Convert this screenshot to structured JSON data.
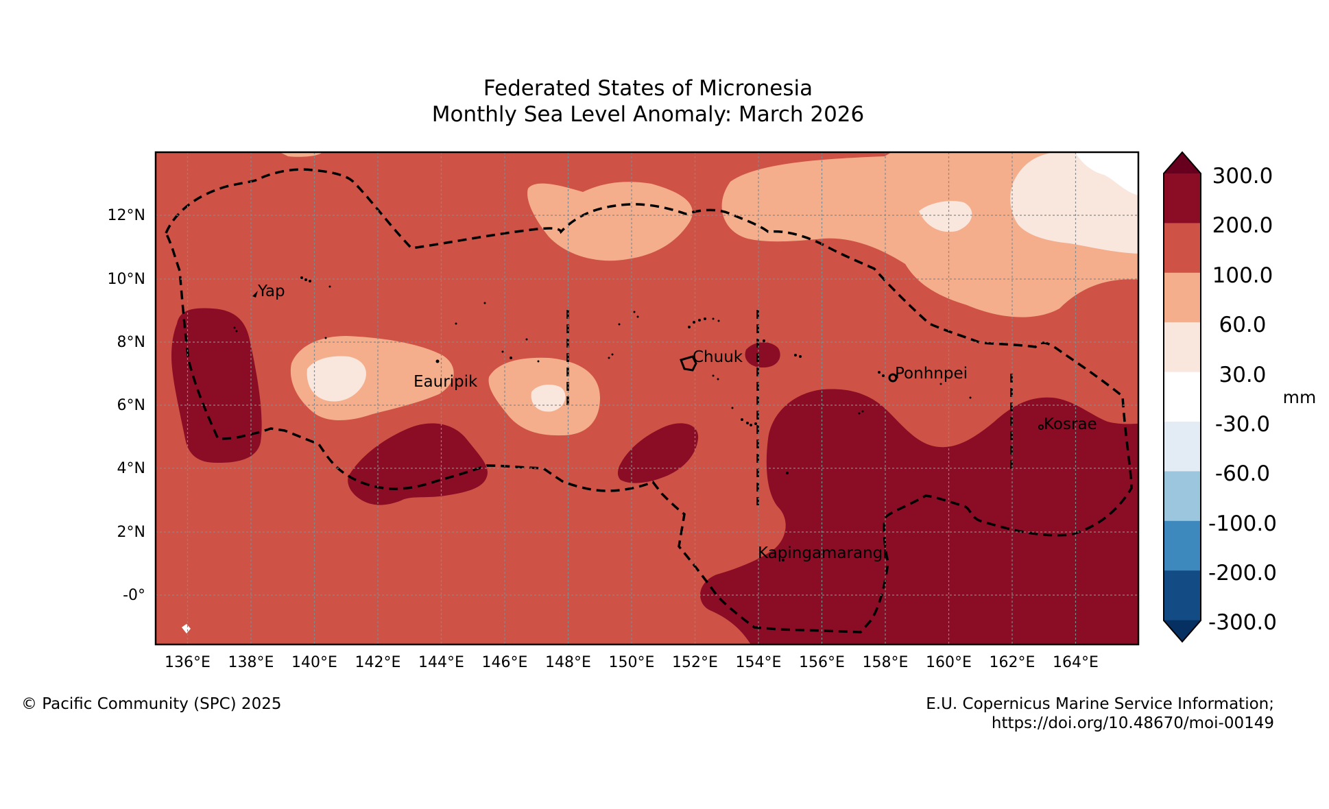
{
  "title": {
    "line1": "Federated States of Micronesia",
    "line2": "Monthly Sea Level Anomaly: March 2026"
  },
  "map": {
    "lat_ticks": [
      "12°N",
      "10°N",
      "8°N",
      "6°N",
      "4°N",
      "2°N",
      "-0°"
    ],
    "lon_ticks": [
      "136°E",
      "138°E",
      "140°E",
      "142°E",
      "144°E",
      "146°E",
      "148°E",
      "150°E",
      "152°E",
      "154°E",
      "156°E",
      "158°E",
      "160°E",
      "162°E",
      "164°E"
    ],
    "place_labels": [
      "Yap",
      "Eauripik",
      "Chuuk",
      "Ponhnpei",
      "Kosrae",
      "Kapingamarangi"
    ]
  },
  "colorbar": {
    "unit": "mm",
    "labels": [
      "300.0",
      "200.0",
      "100.0",
      "60.0",
      "30.0",
      "-30.0",
      "-60.0",
      "-100.0",
      "-200.0",
      "-300.0"
    ],
    "colors": [
      "#67001f",
      "#8b0c25",
      "#cf5246",
      "#f4ae8c",
      "#f9e7de",
      "#ffffff",
      "#e3ecf4",
      "#9cc6de",
      "#3d88bd",
      "#134b84",
      "#053061"
    ]
  },
  "footer": {
    "left": "© Pacific Community (SPC) 2025",
    "right1": "E.U. Copernicus Marine Service Information;",
    "right2": "https://doi.org/10.48670/moi-00149"
  }
}
